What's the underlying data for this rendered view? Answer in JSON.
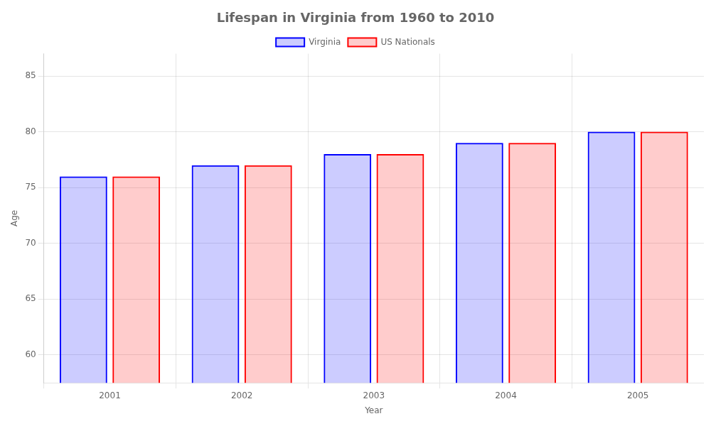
{
  "chart_data": {
    "type": "bar",
    "title": "Lifespan in Virginia from 1960 to 2010",
    "x_label": "Year",
    "y_label": "Age",
    "categories": [
      "2001",
      "2002",
      "2003",
      "2004",
      "2005"
    ],
    "series": [
      {
        "name": "Virginia",
        "color": "#0000ff",
        "values": [
          76.0,
          77.0,
          78.0,
          79.0,
          80.0
        ]
      },
      {
        "name": "US Nationals",
        "color": "#ff0000",
        "values": [
          76.0,
          77.0,
          78.0,
          79.0,
          80.0
        ]
      }
    ],
    "ylim": [
      57.5,
      87
    ],
    "yticks": [
      60,
      65,
      70,
      75,
      80,
      85
    ],
    "grid": true,
    "legend": "top"
  }
}
